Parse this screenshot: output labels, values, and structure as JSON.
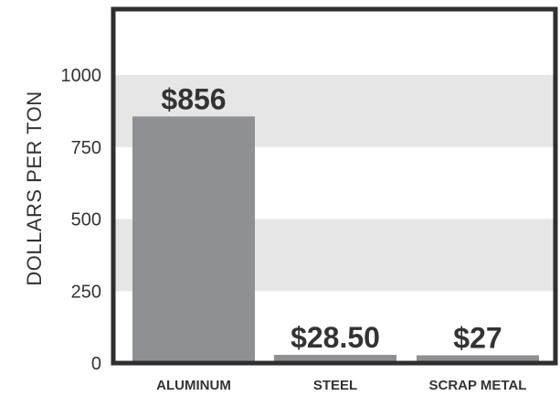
{
  "chart_data": {
    "type": "bar",
    "categories": [
      "ALUMINUM",
      "STEEL",
      "SCRAP METAL"
    ],
    "values": [
      856,
      28.5,
      27
    ],
    "data_labels": [
      "$856",
      "$28.50",
      "$27"
    ],
    "title": "",
    "xlabel": "",
    "ylabel": "DOLLARS PER TON",
    "ylim": [
      0,
      1200
    ],
    "yticks": [
      0,
      250,
      500,
      750,
      1000
    ],
    "ytick_labels": [
      "0",
      "250",
      "500",
      "750",
      "1000"
    ],
    "grid": "alternating horizontal bands",
    "legend": "none",
    "colors": {
      "bar": "#8f9093",
      "band": "#e6e6e7",
      "frame": "#2f2f2f",
      "text": "#333333"
    }
  }
}
